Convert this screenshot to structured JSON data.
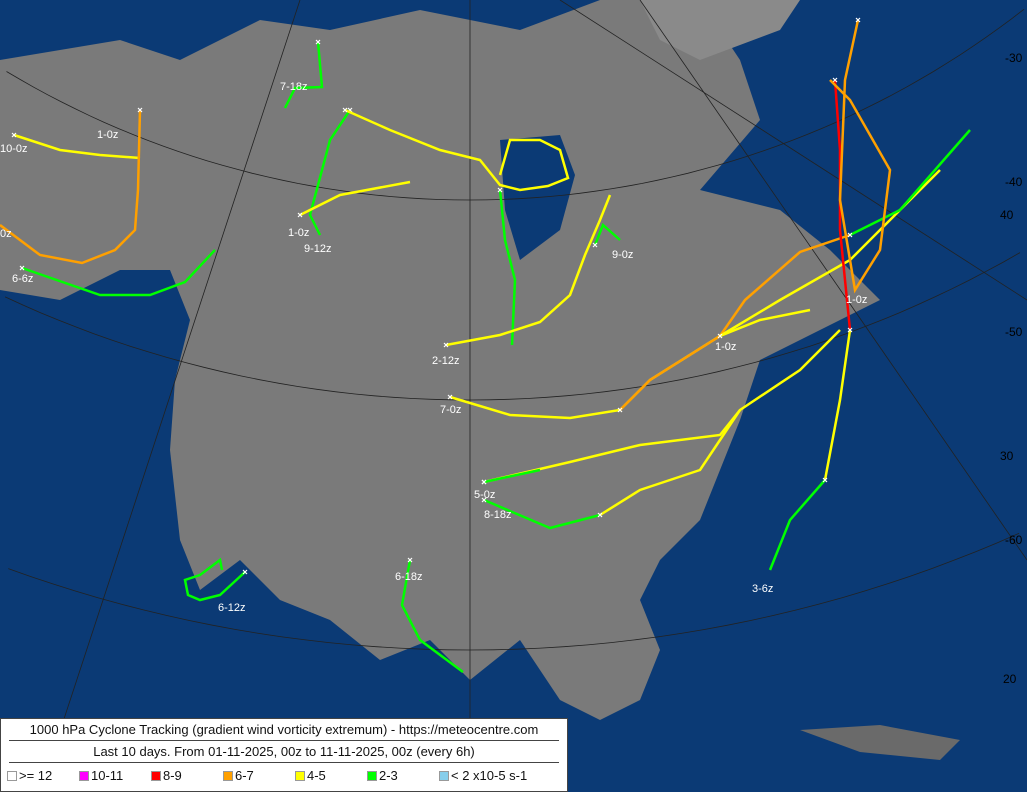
{
  "title": "1000 hPa Cyclone Tracking (gradient wind vorticity extremum) - https://meteocentre.com",
  "subtitle": "Last 10 days. From 01-11-2025, 00z to 11-11-2025, 00z (every 6h)",
  "colors": {
    "ocean": "#0b3a75",
    "land": "#7a7a7a"
  },
  "legend": [
    {
      "label": ">= 12",
      "color": "#ffffff"
    },
    {
      "label": "10-11",
      "color": "#ff00ff"
    },
    {
      "label": "8-9",
      "color": "#ff0000"
    },
    {
      "label": "6-7",
      "color": "#ffa000"
    },
    {
      "label": "4-5",
      "color": "#ffff00"
    },
    {
      "label": "2-3",
      "color": "#00ff00"
    },
    {
      "label": "< 2 x10-5 s-1",
      "color": "#87ceeb"
    }
  ],
  "graticule_labels": [
    "-30",
    "-40",
    "40",
    "-50",
    "30",
    "-60",
    "20"
  ],
  "track_labels": [
    "10-0z",
    "1-0z",
    "0z",
    "6-6z",
    "7-18z",
    "1-0z",
    "9-12z",
    "2-12z",
    "7-0z",
    "9-0z",
    "1-0z",
    "1-0z",
    "5-0z",
    "8-18z",
    "3-6z",
    "6-18z",
    "6-12z"
  ]
}
